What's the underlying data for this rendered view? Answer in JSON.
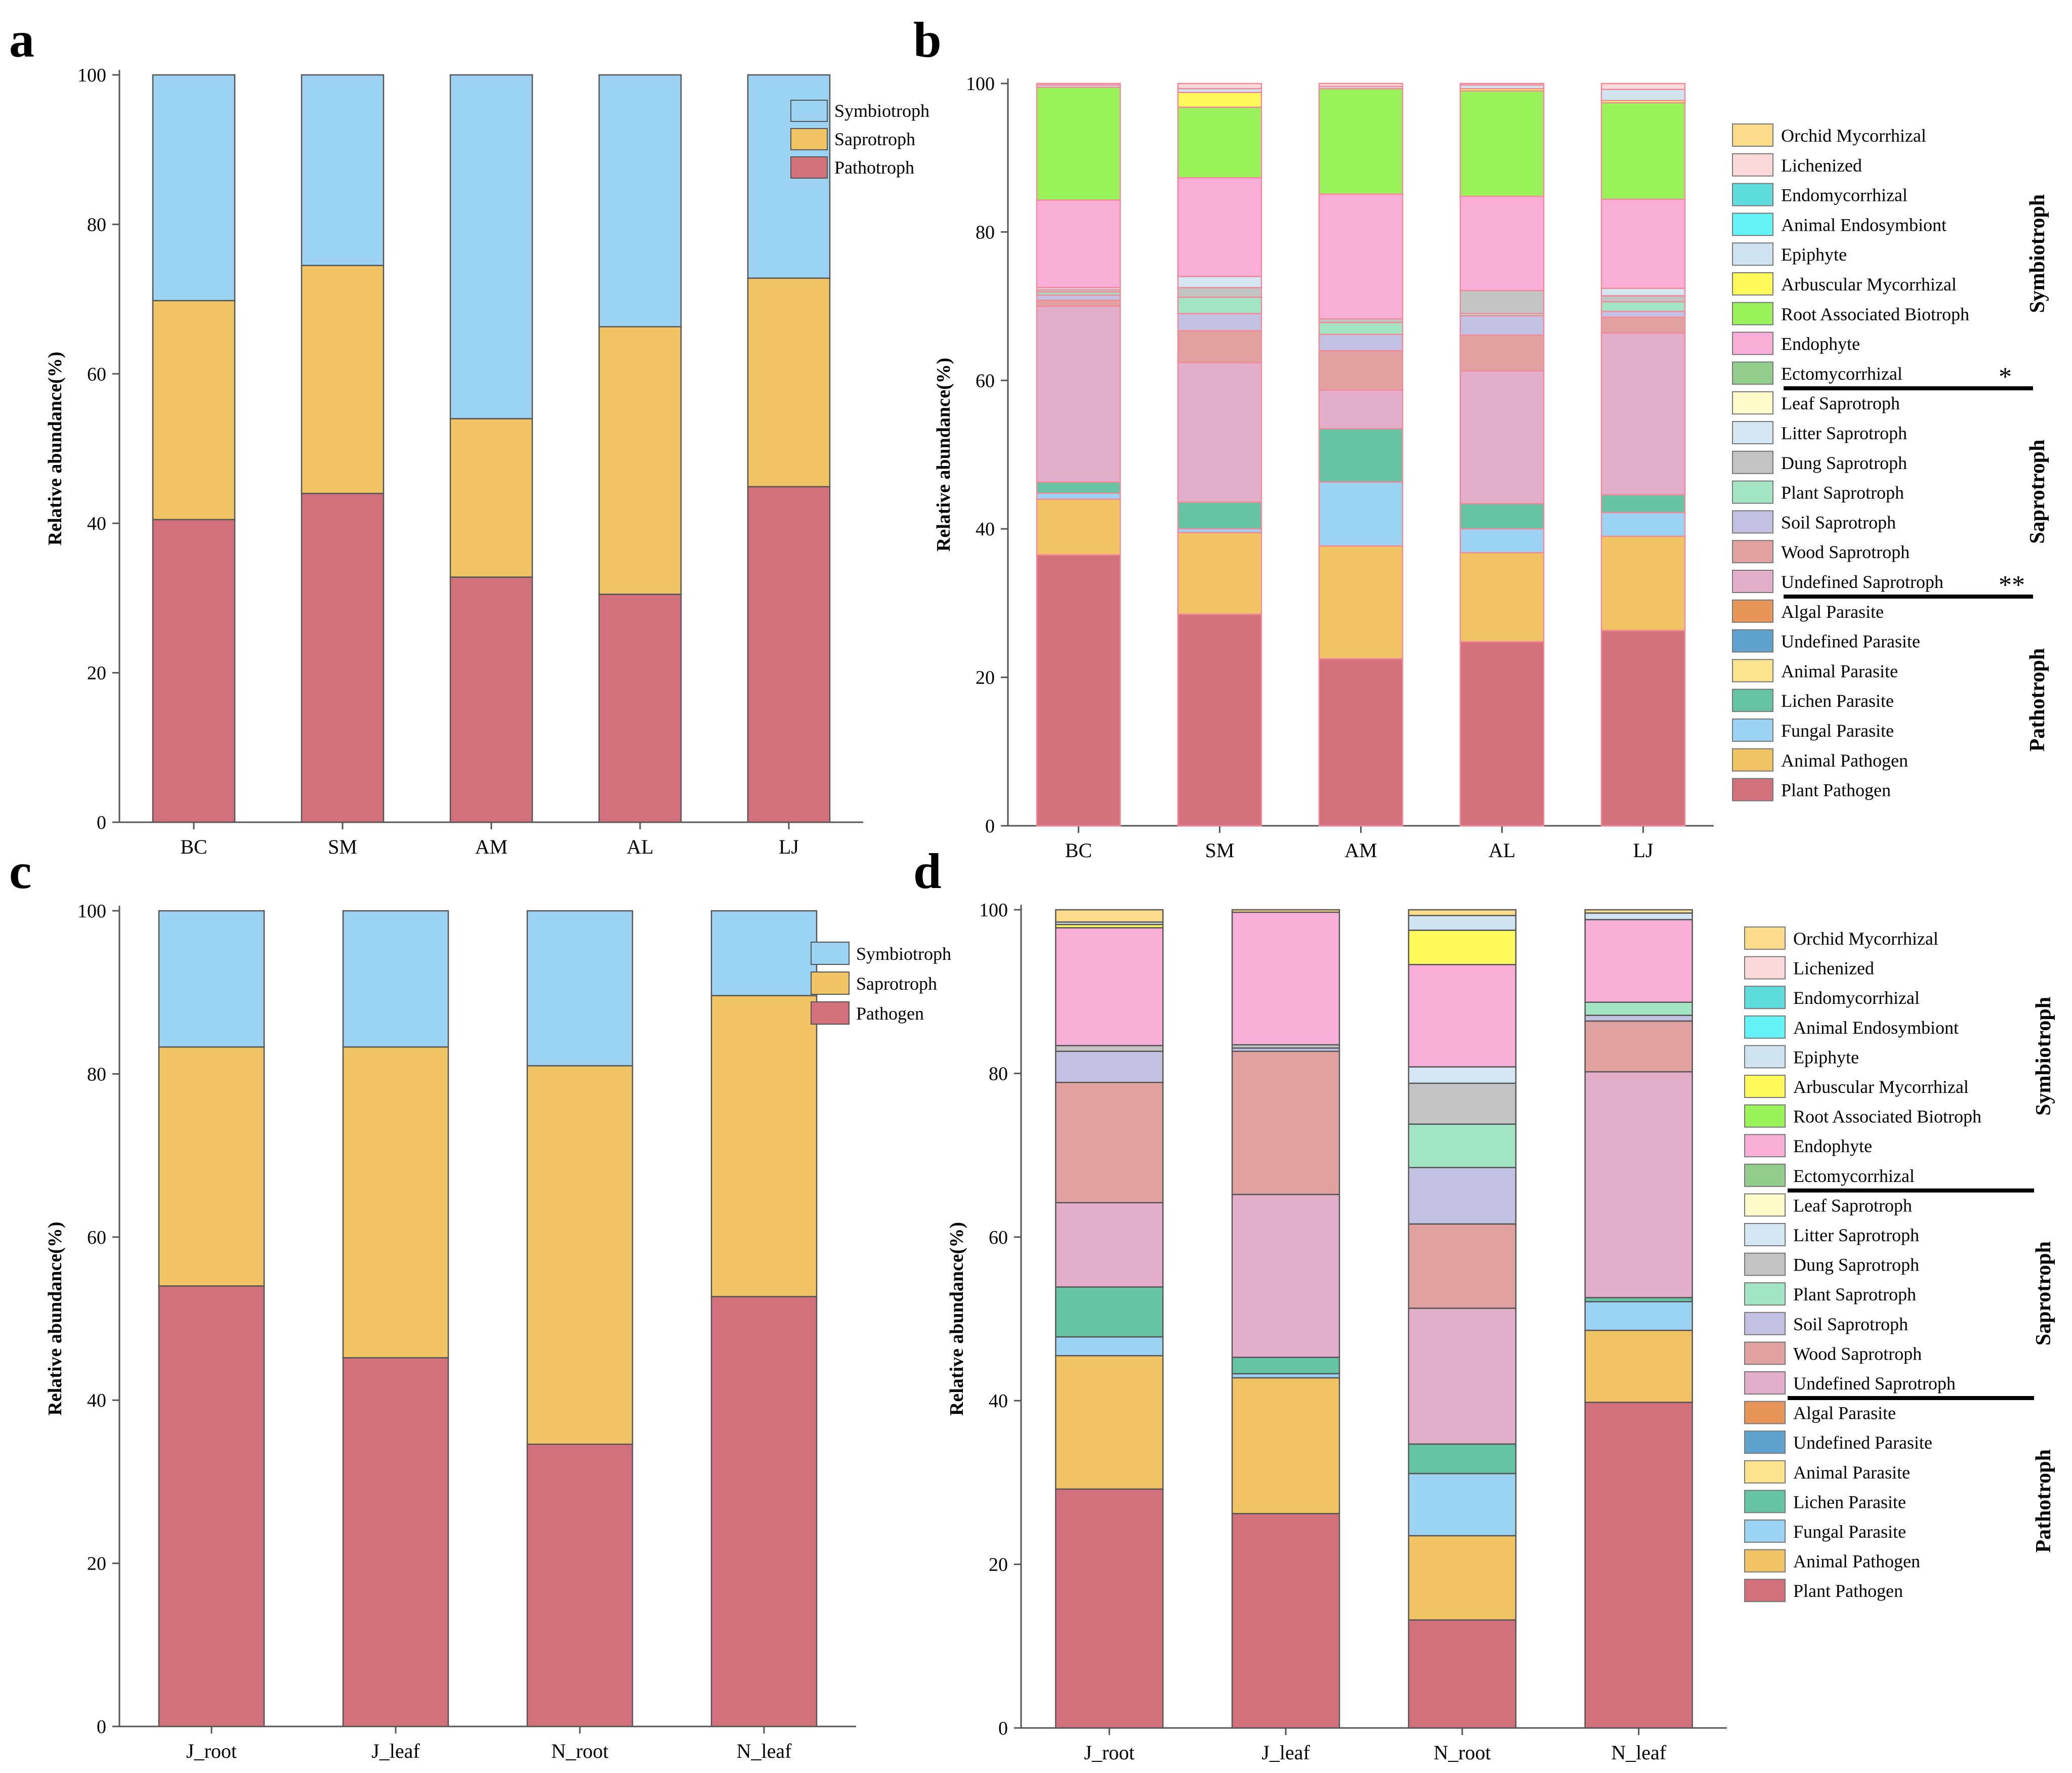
{
  "figure": {
    "panel_labels": [
      "a",
      "b",
      "c",
      "d"
    ]
  },
  "guild_colors": {
    "Symbiotroph": "#9DD3F2",
    "Saprotroph": "#F0C465",
    "Pathotroph": "#D2717C",
    "Pathogen": "#D2717C",
    "Orchid Mycorrhizal": "#FCDB8A",
    "Lichenized": "#FBD9DB",
    "Endomycorrhizal": "#5FDCDE",
    "Animal Endosymbiont": "#63F3F7",
    "Epiphyte": "#CFE3F1",
    "Arbuscular Mycorrhizal": "#FFF95B",
    "Root Associated Biotroph": "#9AF25B",
    "Endophyte": "#F8AED6",
    "Ectomycorrhizal": "#93CD8C",
    "Leaf Saprotroph": "#FFFAC9",
    "Litter Saprotroph": "#D3E6F2",
    "Dung Saprotroph": "#C3C3C3",
    "Plant Saprotroph": "#A3E4C4",
    "Soil Saprotroph": "#C3C1E2",
    "Wood Saprotroph": "#E1A1A1",
    "Undefined Saprotroph": "#E3AEC9",
    "Algal Parasite": "#E8955A",
    "Undefined Parasite": "#5FA1CF",
    "Animal Parasite": "#FCE48E",
    "Lichen Parasite": "#66C3A4",
    "Fungal Parasite": "#9DD3F2",
    "Animal Pathogen": "#F0C465",
    "Plant Pathogen": "#D2717C"
  },
  "chart_data": [
    {
      "panel": "a",
      "type": "bar",
      "stacked": true,
      "categories": [
        "BC",
        "SM",
        "AM",
        "AL",
        "LJ"
      ],
      "ylabel": "Relative abundance(%)",
      "ylim": [
        0,
        100
      ],
      "yticks": [
        "0",
        "20",
        "40",
        "60",
        "80",
        "100"
      ],
      "legend": [
        "Symbiotroph",
        "Saprotroph",
        "Pathotroph"
      ],
      "series": [
        {
          "name": "Pathotroph",
          "values": [
            40.5,
            44,
            32.8,
            30.5,
            44.9
          ]
        },
        {
          "name": "Saprotroph",
          "values": [
            29.3,
            30.5,
            21.2,
            35.8,
            27.9
          ]
        },
        {
          "name": "Symbiotroph",
          "values": [
            30.2,
            25.5,
            46,
            33.7,
            27.2
          ]
        }
      ]
    },
    {
      "panel": "b",
      "type": "bar",
      "stacked": true,
      "categories": [
        "BC",
        "SM",
        "AM",
        "AL",
        "LJ"
      ],
      "ylabel": "Relative abundance(%)",
      "ylim": [
        0,
        100
      ],
      "yticks": [
        "0",
        "20",
        "40",
        "60",
        "80",
        "100"
      ],
      "legend": [
        "Orchid Mycorrhizal",
        "Lichenized",
        "Endomycorrhizal",
        "Animal Endosymbiont",
        "Epiphyte",
        "Arbuscular Mycorrhizal",
        "Root Associated Biotroph",
        "Endophyte",
        "Ectomycorrhizal",
        "Leaf Saprotroph",
        "Litter Saprotroph",
        "Dung Saprotroph",
        "Plant Saprotroph",
        "Soil Saprotroph",
        "Wood Saprotroph",
        "Undefined Saprotroph",
        "Algal Parasite",
        "Undefined Parasite",
        "Animal Parasite",
        "Lichen Parasite",
        "Fungal Parasite",
        "Animal Pathogen",
        "Plant Pathogen"
      ],
      "groups": [
        {
          "name": "Symbiotroph",
          "from": 0,
          "to": 8
        },
        {
          "name": "Saprotroph",
          "from": 9,
          "to": 15
        },
        {
          "name": "Pathotroph",
          "from": 16,
          "to": 22
        }
      ],
      "annotations": [
        {
          "entry": "Ectomycorrhizal",
          "text": "*"
        },
        {
          "entry": "Undefined Saprotroph",
          "text": "**"
        }
      ],
      "series": [
        {
          "name": "Plant Pathogen",
          "values": [
            36.5,
            28.5,
            22.5,
            24.8,
            26.3
          ]
        },
        {
          "name": "Animal Pathogen",
          "values": [
            7.5,
            11,
            15.2,
            12,
            12.7
          ]
        },
        {
          "name": "Fungal Parasite",
          "values": [
            0.8,
            0.5,
            8.6,
            3.2,
            3.2
          ]
        },
        {
          "name": "Lichen Parasite",
          "values": [
            1.5,
            3.6,
            7.2,
            3.4,
            2.4
          ]
        },
        {
          "name": "Animal Parasite",
          "values": [
            0,
            0,
            0,
            0,
            0
          ]
        },
        {
          "name": "Undefined Parasite",
          "values": [
            0,
            0,
            0,
            0,
            0
          ]
        },
        {
          "name": "Algal Parasite",
          "values": [
            0,
            0,
            0,
            0,
            0
          ]
        },
        {
          "name": "Undefined Saprotroph",
          "values": [
            23.7,
            18.8,
            5.2,
            17.9,
            21.8
          ]
        },
        {
          "name": "Wood Saprotroph",
          "values": [
            0.8,
            4.3,
            5.3,
            4.8,
            2.1
          ]
        },
        {
          "name": "Soil Saprotroph",
          "values": [
            0.7,
            2.3,
            2.2,
            2.6,
            0.8
          ]
        },
        {
          "name": "Plant Saprotroph",
          "values": [
            0.4,
            2.2,
            1.6,
            0.3,
            1.3
          ]
        },
        {
          "name": "Dung Saprotroph",
          "values": [
            0.3,
            1.3,
            0.5,
            3.1,
            0.8
          ]
        },
        {
          "name": "Litter Saprotroph",
          "values": [
            0.3,
            1.5,
            0,
            0,
            1
          ]
        },
        {
          "name": "Leaf Saprotroph",
          "values": [
            0,
            0,
            0,
            0,
            0
          ]
        },
        {
          "name": "Ectomycorrhizal",
          "values": [
            0,
            0,
            0,
            0,
            0
          ]
        },
        {
          "name": "Endophyte",
          "values": [
            11.8,
            13.3,
            16.8,
            12.7,
            12
          ]
        },
        {
          "name": "Root Associated Biotroph",
          "values": [
            15.2,
            9.5,
            14.2,
            14.2,
            13
          ]
        },
        {
          "name": "Arbuscular Mycorrhizal",
          "values": [
            0,
            2,
            0,
            0.3,
            0.3
          ]
        },
        {
          "name": "Epiphyte",
          "values": [
            0.3,
            0.5,
            0.3,
            0.5,
            1.5
          ]
        },
        {
          "name": "Animal Endosymbiont",
          "values": [
            0,
            0,
            0,
            0,
            0
          ]
        },
        {
          "name": "Endomycorrhizal",
          "values": [
            0,
            0,
            0,
            0,
            0
          ]
        },
        {
          "name": "Lichenized",
          "values": [
            0.2,
            0.7,
            0.4,
            0.2,
            0.8
          ]
        },
        {
          "name": "Orchid Mycorrhizal",
          "values": [
            0,
            0,
            0,
            0,
            0
          ]
        }
      ]
    },
    {
      "panel": "c",
      "type": "bar",
      "stacked": true,
      "categories": [
        "J_root",
        "J_leaf",
        "N_root",
        "N_leaf"
      ],
      "ylabel": "Relative abundance(%)",
      "ylim": [
        0,
        100
      ],
      "yticks": [
        "0",
        "20",
        "40",
        "60",
        "80",
        "100"
      ],
      "legend": [
        "Symbiotroph",
        "Saprotroph",
        "Pathogen"
      ],
      "series": [
        {
          "name": "Pathogen",
          "values": [
            54,
            45.2,
            34.6,
            52.7
          ]
        },
        {
          "name": "Saprotroph",
          "values": [
            29.3,
            38.1,
            46.4,
            36.9
          ]
        },
        {
          "name": "Symbiotroph",
          "values": [
            16.7,
            16.7,
            19,
            10.4
          ]
        }
      ]
    },
    {
      "panel": "d",
      "type": "bar",
      "stacked": true,
      "categories": [
        "J_root",
        "J_leaf",
        "N_root",
        "N_leaf"
      ],
      "ylabel": "Relative abundance(%)",
      "ylim": [
        0,
        100
      ],
      "yticks": [
        "0",
        "20",
        "40",
        "60",
        "80",
        "100"
      ],
      "legend": [
        "Orchid Mycorrhizal",
        "Lichenized",
        "Endomycorrhizal",
        "Animal Endosymbiont",
        "Epiphyte",
        "Arbuscular Mycorrhizal",
        "Root Associated Biotroph",
        "Endophyte",
        "Ectomycorrhizal",
        "Leaf Saprotroph",
        "Litter Saprotroph",
        "Dung Saprotroph",
        "Plant Saprotroph",
        "Soil Saprotroph",
        "Wood Saprotroph",
        "Undefined Saprotroph",
        "Algal Parasite",
        "Undefined Parasite",
        "Animal Parasite",
        "Lichen Parasite",
        "Fungal Parasite",
        "Animal Pathogen",
        "Plant Pathogen"
      ],
      "groups": [
        {
          "name": "Symbiotroph",
          "from": 0,
          "to": 8
        },
        {
          "name": "Saprotroph",
          "from": 9,
          "to": 15
        },
        {
          "name": "Pathotroph",
          "from": 16,
          "to": 22
        }
      ],
      "annotations": [],
      "series": [
        {
          "name": "Plant Pathogen",
          "values": [
            29.2,
            26.2,
            13.2,
            39.8
          ]
        },
        {
          "name": "Animal Pathogen",
          "values": [
            16.3,
            16.6,
            10.3,
            8.8
          ]
        },
        {
          "name": "Fungal Parasite",
          "values": [
            2.3,
            0.5,
            7.6,
            3.5
          ]
        },
        {
          "name": "Lichen Parasite",
          "values": [
            6.1,
            2,
            3.6,
            0.5
          ]
        },
        {
          "name": "Animal Parasite",
          "values": [
            0,
            0,
            0,
            0
          ]
        },
        {
          "name": "Undefined Parasite",
          "values": [
            0,
            0,
            0,
            0
          ]
        },
        {
          "name": "Algal Parasite",
          "values": [
            0,
            0,
            0,
            0
          ]
        },
        {
          "name": "Undefined Saprotroph",
          "values": [
            10.3,
            19.9,
            16.6,
            27.6
          ]
        },
        {
          "name": "Wood Saprotroph",
          "values": [
            14.7,
            17.5,
            10.3,
            6.2
          ]
        },
        {
          "name": "Soil Saprotroph",
          "values": [
            3.8,
            0.4,
            6.9,
            0.7
          ]
        },
        {
          "name": "Plant Saprotroph",
          "values": [
            0,
            0,
            5.3,
            1.6
          ]
        },
        {
          "name": "Dung Saprotroph",
          "values": [
            0.7,
            0.4,
            5,
            0
          ]
        },
        {
          "name": "Litter Saprotroph",
          "values": [
            0,
            0,
            2,
            0
          ]
        },
        {
          "name": "Leaf Saprotroph",
          "values": [
            0,
            0,
            0,
            0
          ]
        },
        {
          "name": "Ectomycorrhizal",
          "values": [
            0,
            0,
            0,
            0
          ]
        },
        {
          "name": "Endophyte",
          "values": [
            14.4,
            16.2,
            12.5,
            10.1
          ]
        },
        {
          "name": "Root Associated Biotroph",
          "values": [
            0,
            0,
            0,
            0
          ]
        },
        {
          "name": "Arbuscular Mycorrhizal",
          "values": [
            0.4,
            0,
            4.2,
            0
          ]
        },
        {
          "name": "Epiphyte",
          "values": [
            0.3,
            0,
            1.8,
            0.8
          ]
        },
        {
          "name": "Animal Endosymbiont",
          "values": [
            0,
            0,
            0,
            0
          ]
        },
        {
          "name": "Endomycorrhizal",
          "values": [
            0,
            0,
            0,
            0
          ]
        },
        {
          "name": "Lichenized",
          "values": [
            0,
            0,
            0,
            0
          ]
        },
        {
          "name": "Orchid Mycorrhizal",
          "values": [
            1.5,
            0.3,
            0.7,
            0.4
          ]
        }
      ]
    }
  ]
}
